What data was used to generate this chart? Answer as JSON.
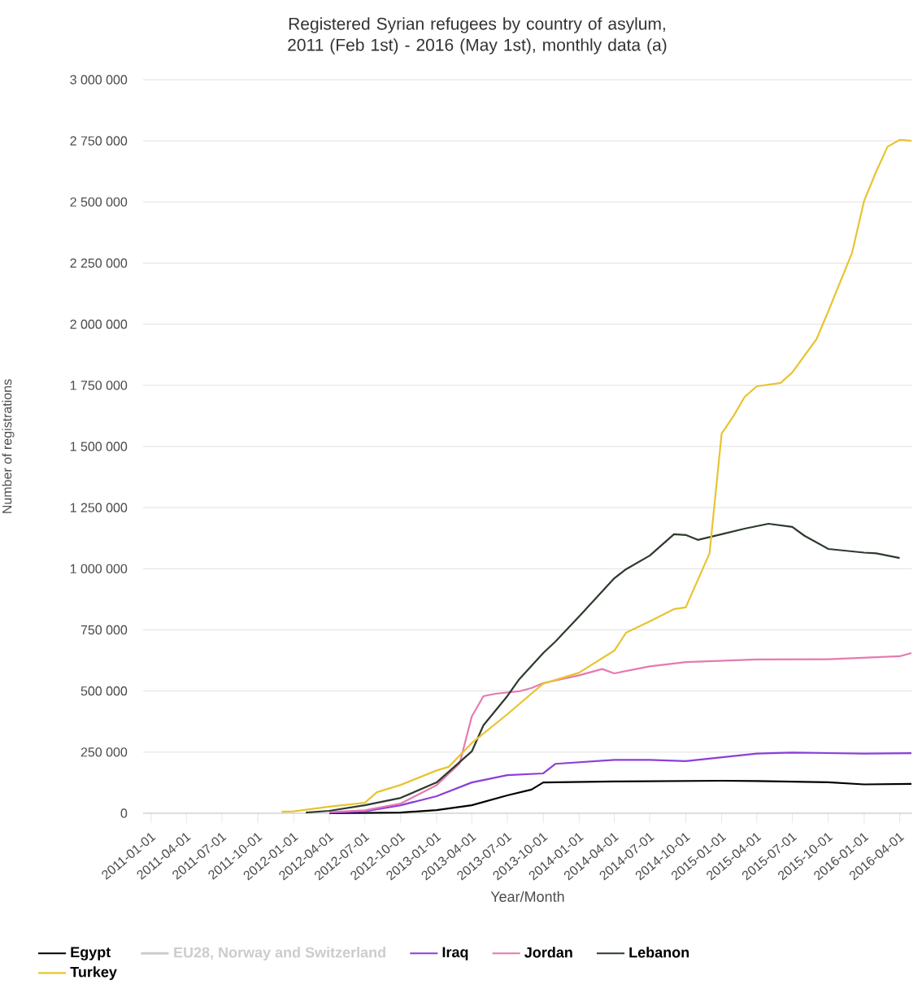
{
  "chart_data": {
    "type": "line",
    "title": "Registered Syrian refugees by country of asylum, 2011 (Feb 1st) - 2016 (May 1st), monthly data (a)",
    "xlabel": "Year/Month",
    "ylabel": "Number of registrations",
    "xlim": [
      "2010-12-11",
      "2016-05-03"
    ],
    "xticks": [
      "2011-01-01",
      "2011-04-01",
      "2011-07-01",
      "2011-10-01",
      "2012-01-01",
      "2012-04-01",
      "2012-07-01",
      "2012-10-01",
      "2013-01-01",
      "2013-04-01",
      "2013-07-01",
      "2013-10-01",
      "2014-01-01",
      "2014-04-01",
      "2014-07-01",
      "2014-10-01",
      "2015-01-01",
      "2015-04-01",
      "2015-07-01",
      "2015-10-01",
      "2016-01-01",
      "2016-04-01"
    ],
    "ylim": [
      0,
      3000000
    ],
    "yticks": [
      0,
      {
        "value": 250000,
        "label": "250 000"
      },
      {
        "value": 500000,
        "label": "500 000"
      },
      {
        "value": 750000,
        "label": "750 000"
      },
      {
        "value": 1000000,
        "label": "1 000 000"
      },
      {
        "value": 1250000,
        "label": "1 250 000"
      },
      {
        "value": 1500000,
        "label": "1 500 000"
      },
      {
        "value": 1750000,
        "label": "1 750 000"
      },
      {
        "value": 2000000,
        "label": "2 000 000"
      },
      {
        "value": 2250000,
        "label": "2 250 000"
      },
      {
        "value": 2500000,
        "label": "2 500 000"
      },
      {
        "value": 2750000,
        "label": "2 750 000"
      },
      {
        "value": 3000000,
        "label": "3 000 000"
      }
    ],
    "grid": "y",
    "legend": "bottom",
    "series": [
      {
        "name": "Egypt",
        "color": "#000000",
        "x": [
          "2012-04-01",
          "2012-10-01",
          "2013-01-01",
          "2013-04-01",
          "2013-07-01",
          "2013-09-01",
          "2013-10-01",
          "2014-04-01",
          "2015-01-01",
          "2015-04-01",
          "2015-10-01",
          "2016-01-01",
          "2016-05-01"
        ],
        "values": [
          0,
          3000,
          13000,
          33000,
          73000,
          97000,
          126000,
          130000,
          133000,
          132000,
          127000,
          118000,
          120000
        ]
      },
      {
        "name": "EU28, Norway and Switzerland",
        "color": "#cccccc"
      },
      {
        "name": "Iraq",
        "color": "#8b3fd9",
        "x": [
          "2012-04-01",
          "2012-07-01",
          "2012-10-01",
          "2013-01-01",
          "2013-04-01",
          "2013-07-01",
          "2013-10-01",
          "2013-11-01",
          "2014-04-01",
          "2014-07-01",
          "2014-10-01",
          "2015-04-01",
          "2015-07-01",
          "2016-01-01",
          "2016-05-01"
        ],
        "values": [
          2000,
          8000,
          33000,
          70000,
          126000,
          156000,
          163000,
          202000,
          218000,
          218000,
          213000,
          244000,
          248000,
          244000,
          246000
        ]
      },
      {
        "name": "Jordan",
        "color": "#e57ab0",
        "x": [
          "2012-04-01",
          "2012-07-01",
          "2012-10-01",
          "2013-01-01",
          "2013-03-01",
          "2013-04-01",
          "2013-05-01",
          "2013-06-01",
          "2013-08-01",
          "2013-09-01",
          "2013-10-01",
          "2014-01-01",
          "2014-03-01",
          "2014-04-01",
          "2014-07-01",
          "2014-10-01",
          "2015-04-01",
          "2015-10-01",
          "2016-04-01",
          "2016-05-01"
        ],
        "values": [
          5000,
          12000,
          40000,
          115000,
          204000,
          396000,
          479000,
          489000,
          499000,
          512000,
          532000,
          564000,
          590000,
          572000,
          601000,
          618000,
          629000,
          630000,
          642000,
          655000
        ]
      },
      {
        "name": "Lebanon",
        "color": "#2d3a2d",
        "x": [
          "2012-02-01",
          "2012-04-01",
          "2012-07-01",
          "2012-10-01",
          "2013-01-01",
          "2013-04-01",
          "2013-05-01",
          "2013-07-01",
          "2013-08-01",
          "2013-10-01",
          "2013-11-01",
          "2014-01-01",
          "2014-04-01",
          "2014-05-01",
          "2014-07-01",
          "2014-09-01",
          "2014-10-01",
          "2014-11-01",
          "2015-01-01",
          "2015-03-01",
          "2015-05-01",
          "2015-07-01",
          "2015-08-01",
          "2015-10-01",
          "2016-01-01",
          "2016-02-01",
          "2016-04-01"
        ],
        "values": [
          3000,
          10000,
          33000,
          63000,
          126000,
          253000,
          360000,
          479000,
          549000,
          655000,
          702000,
          805000,
          961000,
          998000,
          1054000,
          1141000,
          1138000,
          1118000,
          1141000,
          1164000,
          1184000,
          1171000,
          1135000,
          1081000,
          1066000,
          1063000,
          1044000
        ]
      },
      {
        "name": "Turkey",
        "color": "#e8c431",
        "x": [
          "2011-12-01",
          "2012-01-01",
          "2012-04-01",
          "2012-07-01",
          "2012-08-01",
          "2012-10-01",
          "2013-01-01",
          "2013-02-01",
          "2013-04-01",
          "2013-07-01",
          "2013-10-01",
          "2014-01-01",
          "2014-04-01",
          "2014-05-01",
          "2014-07-01",
          "2014-09-01",
          "2014-10-01",
          "2014-12-01",
          "2015-01-01",
          "2015-02-01",
          "2015-03-01",
          "2015-04-01",
          "2015-06-01",
          "2015-07-01",
          "2015-09-01",
          "2015-10-01",
          "2015-12-01",
          "2016-01-01",
          "2016-02-01",
          "2016-03-01",
          "2016-04-01",
          "2016-05-01"
        ],
        "values": [
          6000,
          8000,
          27000,
          43000,
          86000,
          116000,
          175000,
          190000,
          287000,
          405000,
          530000,
          575000,
          665000,
          738000,
          785000,
          835000,
          842000,
          1063000,
          1553000,
          1626000,
          1703000,
          1746000,
          1760000,
          1803000,
          1939000,
          2052000,
          2292000,
          2505000,
          2625000,
          2726000,
          2754000,
          2750000
        ]
      }
    ]
  }
}
